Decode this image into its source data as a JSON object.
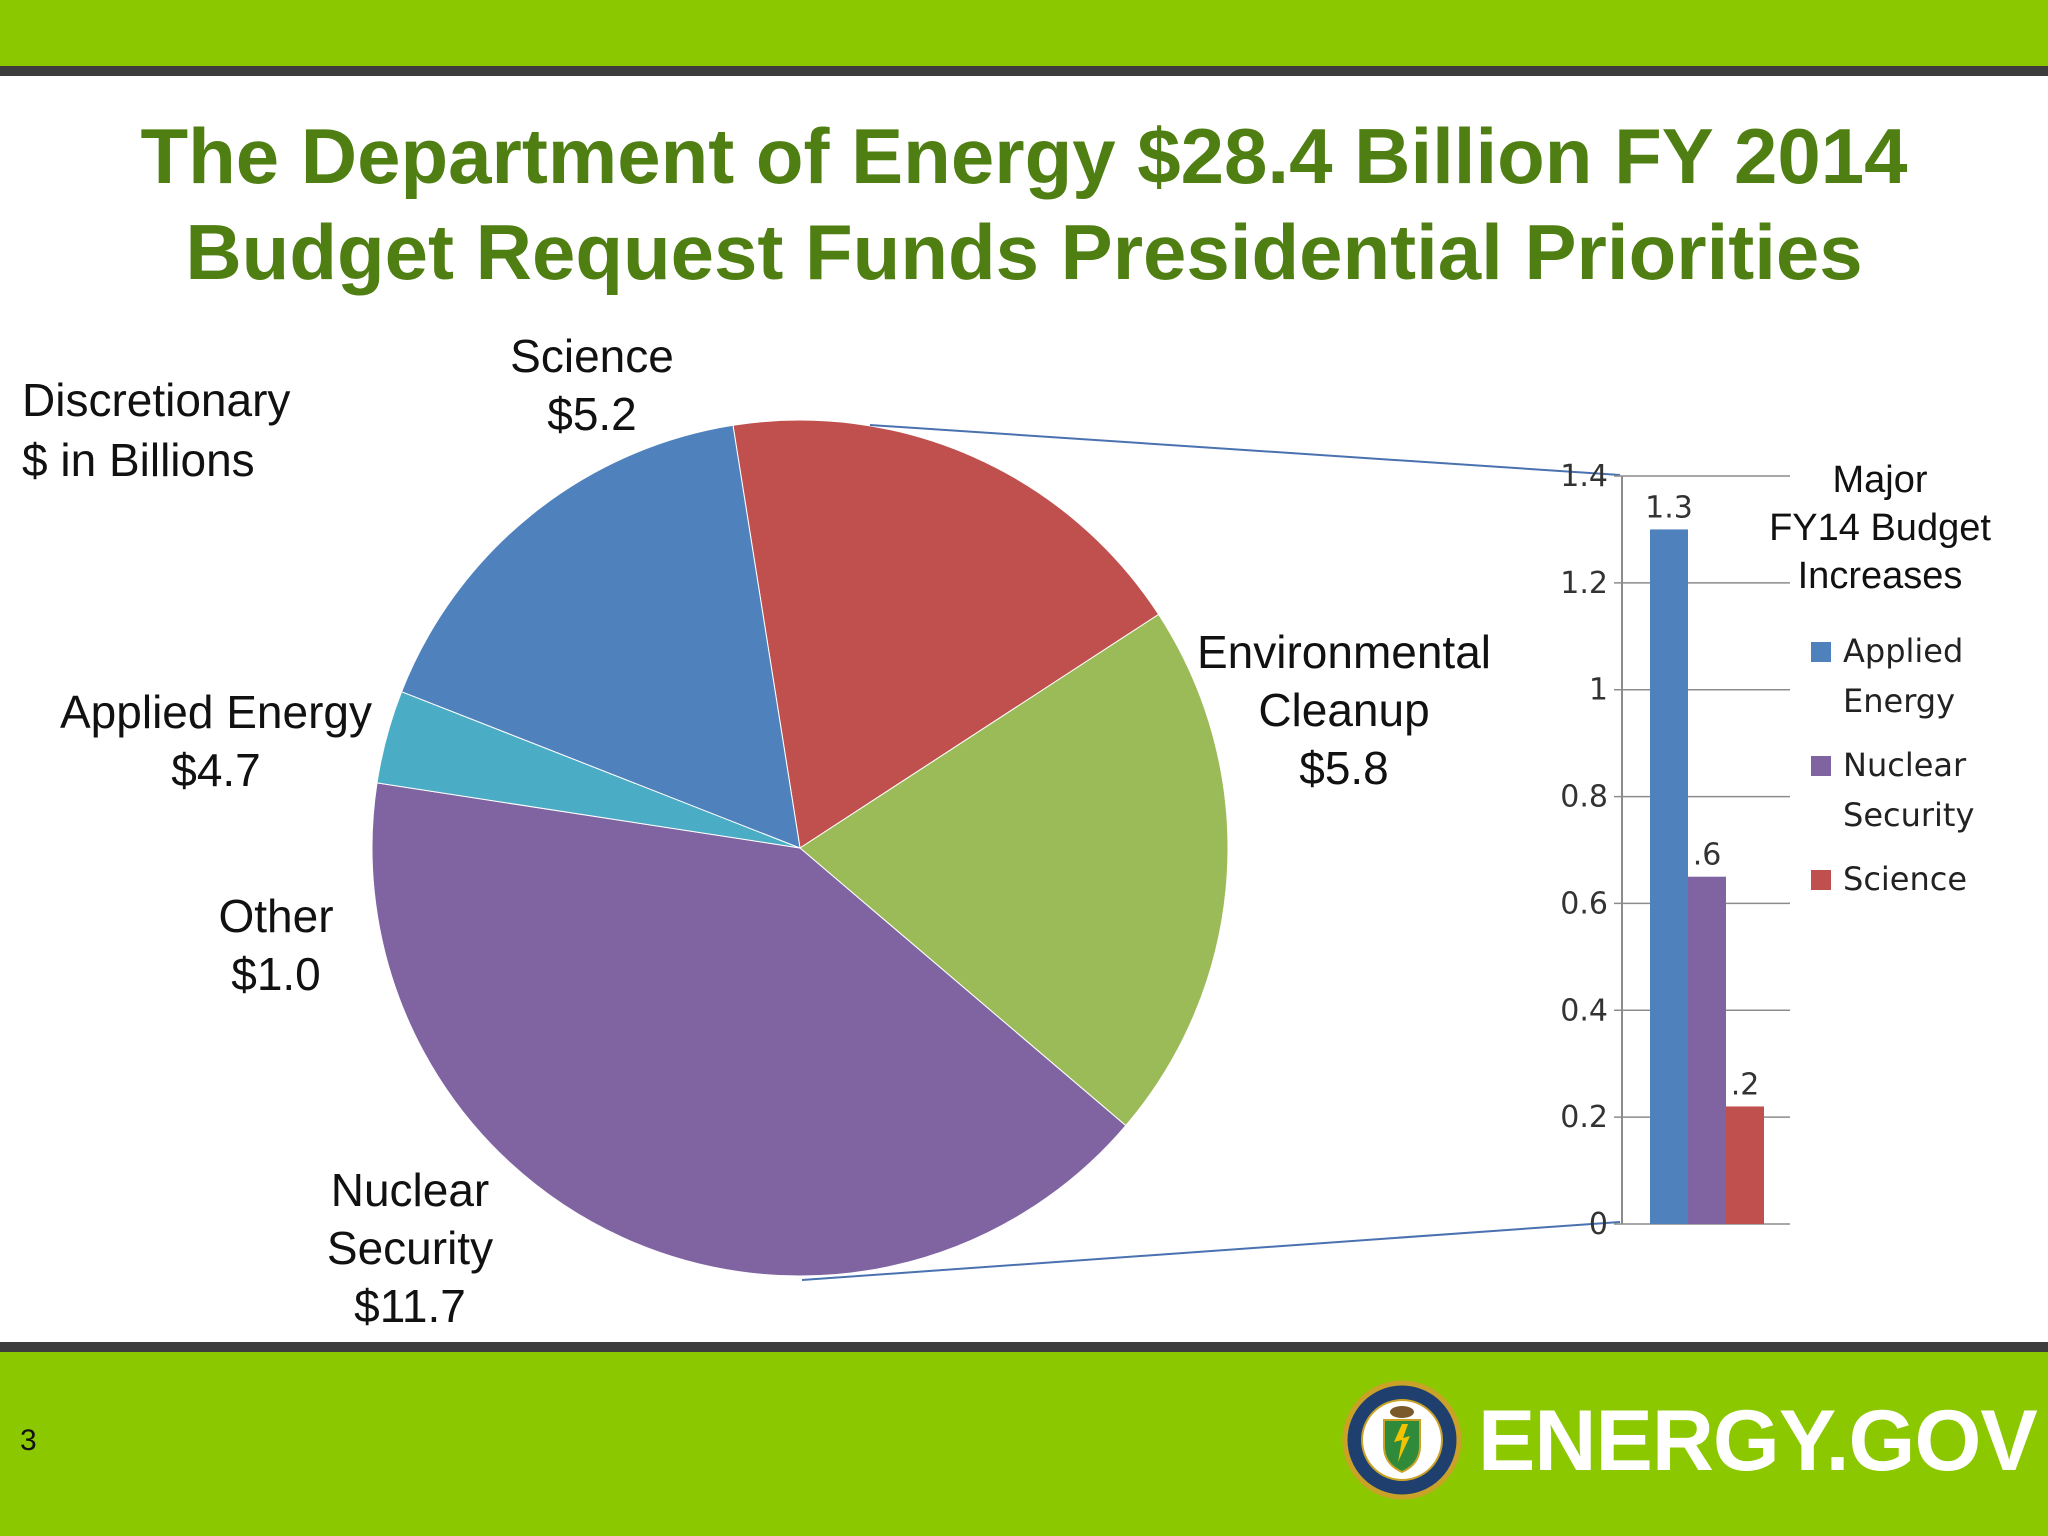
{
  "slide": {
    "title_line1": "The Department of Energy $28.4 Billion FY 2014",
    "title_line2": "Budget Request Funds Presidential Priorities",
    "page_number": "3",
    "brand": "ENERGY.GOV"
  },
  "chart_data": [
    {
      "type": "pie",
      "annotation": [
        "Discretionary",
        "$ in Billions"
      ],
      "slices": [
        {
          "label": [
            "Science",
            "$5.2"
          ],
          "value": 5.2,
          "color": "#c0504d"
        },
        {
          "label": [
            "Environmental",
            "Cleanup",
            "$5.8"
          ],
          "value": 5.8,
          "color": "#9bbb59"
        },
        {
          "label": [
            "Nuclear",
            "Security",
            "$11.7"
          ],
          "value": 11.7,
          "color": "#8064a2"
        },
        {
          "label": [
            "Other",
            "$1.0"
          ],
          "value": 1.0,
          "color": "#4bacc6"
        },
        {
          "label": [
            "Applied Energy",
            "$4.7"
          ],
          "value": 4.7,
          "color": "#4f81bd"
        }
      ]
    },
    {
      "type": "bar",
      "title": [
        "Major",
        "FY14 Budget",
        "Increases"
      ],
      "ylim": [
        0,
        1.4
      ],
      "yticks": [
        "0",
        "0.2",
        "0.4",
        "0.6",
        "0.8",
        "1",
        "1.2",
        "1.4"
      ],
      "grid": true,
      "legend_position": "right",
      "series": [
        {
          "name": [
            "Applied",
            "Energy"
          ],
          "value": 1.3,
          "data_label": "1.3",
          "color": "#4f81bd"
        },
        {
          "name": [
            "Nuclear",
            "Security"
          ],
          "value": 0.65,
          "data_label": ".6",
          "color": "#8064a2"
        },
        {
          "name": [
            "Science"
          ],
          "value": 0.22,
          "data_label": ".2",
          "color": "#c0504d"
        }
      ]
    }
  ]
}
